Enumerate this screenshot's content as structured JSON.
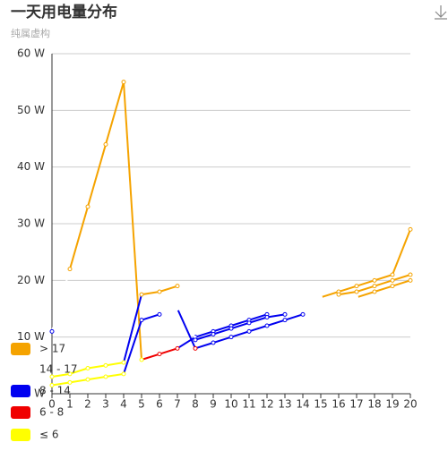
{
  "chart_data": {
    "type": "line",
    "title": "一天用电量分布",
    "subtitle": "纯属虚构",
    "x": [
      0,
      1,
      2,
      3,
      4,
      5,
      6,
      7,
      8,
      9,
      10,
      11,
      12,
      13,
      14,
      15,
      16,
      17,
      18,
      19,
      20
    ],
    "xlim": [
      0,
      20
    ],
    "xticks": [
      0,
      1,
      2,
      3,
      4,
      5,
      6,
      7,
      8,
      9,
      10,
      11,
      12,
      13,
      14,
      15,
      16,
      17,
      18,
      19,
      20
    ],
    "ylim": [
      0,
      60
    ],
    "yticks": [
      {
        "value": 0,
        "label": "0 W"
      },
      {
        "value": 10,
        "label": "10 W"
      },
      {
        "value": 20,
        "label": "20 W"
      },
      {
        "value": 30,
        "label": "30 W"
      },
      {
        "value": 40,
        "label": "40 W"
      },
      {
        "value": 50,
        "label": "50 W"
      },
      {
        "value": 60,
        "label": "60 W"
      }
    ],
    "grid": true,
    "series": [
      {
        "values": [
          11,
          22,
          33,
          44,
          55,
          6,
          7,
          8,
          10,
          11,
          12,
          13,
          14,
          15,
          16,
          17,
          18,
          19,
          20,
          21,
          29
        ]
      },
      {
        "values": [
          3,
          3.5,
          4.5,
          5,
          5.5,
          17.5,
          18,
          19,
          9.5,
          10.5,
          11.5,
          12.5,
          13.5,
          14,
          15,
          16,
          17.5,
          18,
          19,
          20,
          21
        ]
      },
      {
        "values": [
          1.5,
          2,
          2.5,
          3,
          3.5,
          13,
          14,
          15,
          8,
          9,
          10,
          11,
          12,
          13,
          14,
          15,
          16,
          17,
          18,
          19,
          20
        ]
      }
    ],
    "pieces": [
      {
        "label": "> 17",
        "gt": 17,
        "color": "#f5a300"
      },
      {
        "label": "14 - 17",
        "gt": 14,
        "lte": 17,
        "color": "#ffffff"
      },
      {
        "label": "8 - 14",
        "gt": 8,
        "lte": 14,
        "color": "#0000f0"
      },
      {
        "label": "6 - 8",
        "gt": 6,
        "lte": 8,
        "color": "#f00000"
      },
      {
        "label": "≤ 6",
        "lte": 6,
        "color": "#ffff00"
      }
    ]
  }
}
